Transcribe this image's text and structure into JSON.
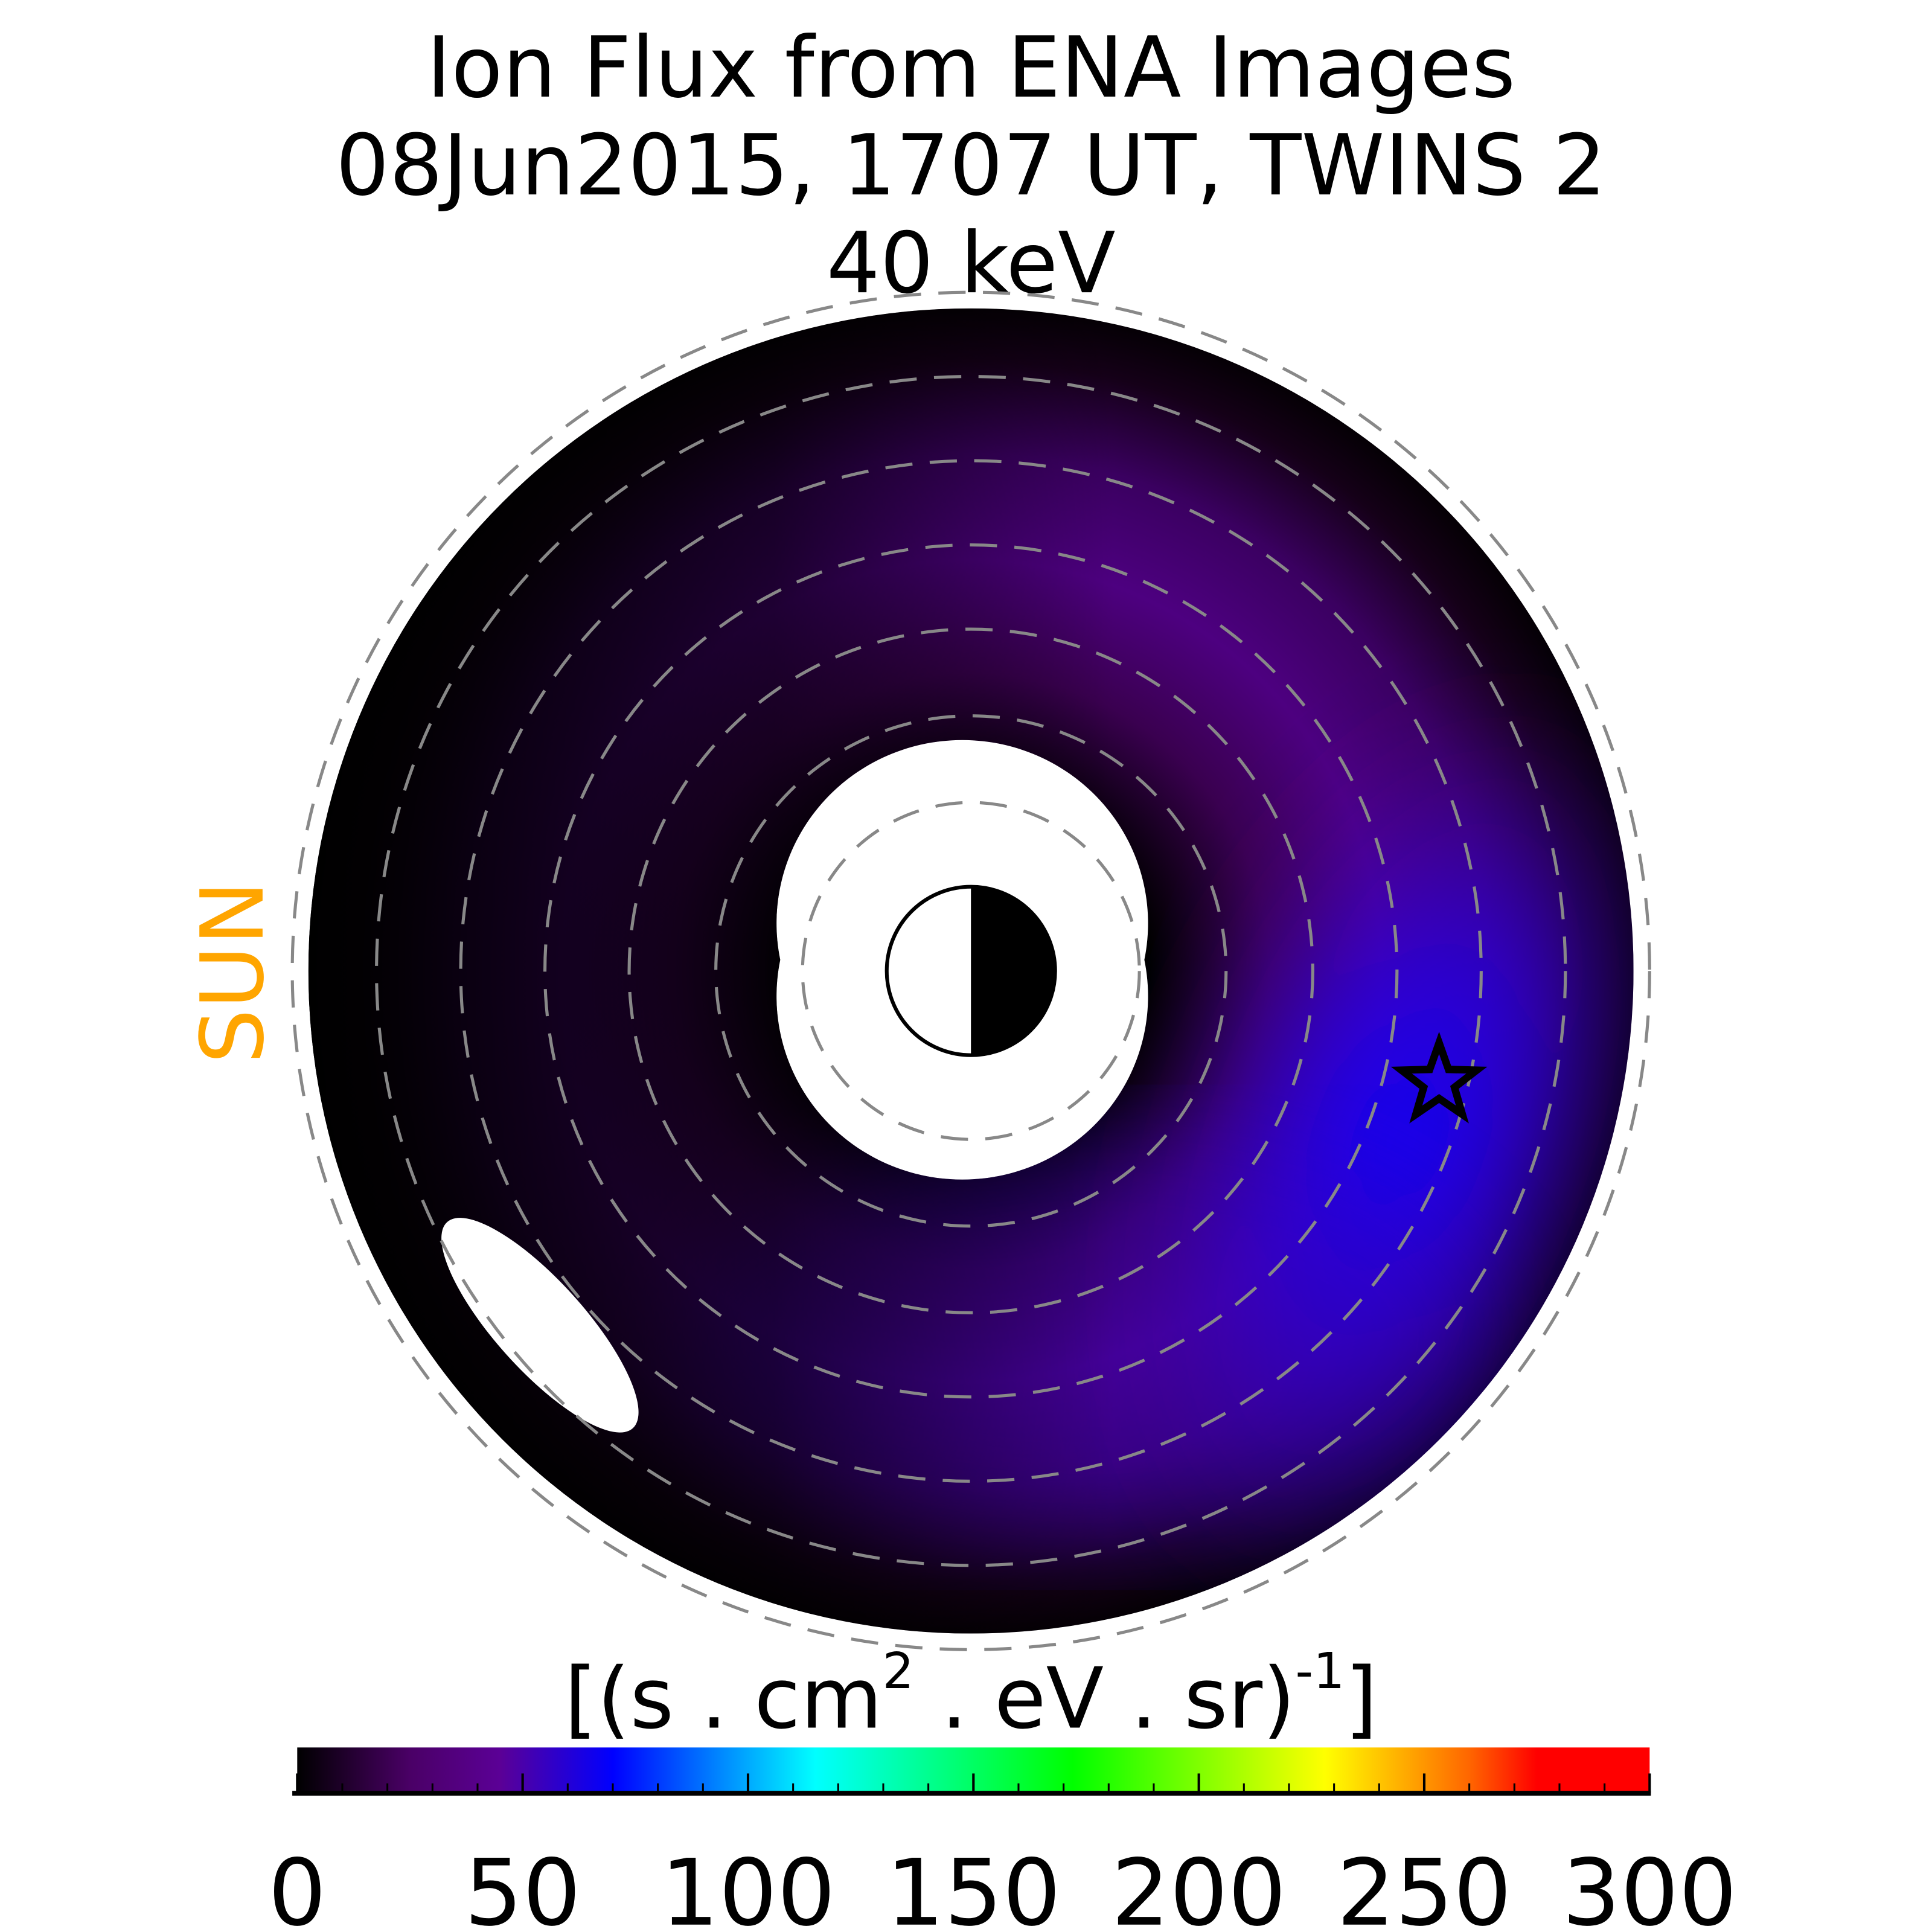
{
  "chart_data": {
    "type": "heatmap",
    "title_lines": [
      "Ion Flux from  ENA Images",
      "08Jun2015, 1707 UT,  TWINS 2",
      "40 keV"
    ],
    "sun_label": "SUN",
    "colorbar": {
      "label_main": "[(s . cm",
      "label_sup1": "2",
      "label_mid": " . eV . sr)",
      "label_sup2": "-1",
      "label_end": "]",
      "range": [
        0,
        300
      ],
      "tick_labels": [
        "0",
        "50",
        "100",
        "150",
        "200",
        "250",
        "300"
      ],
      "tick_values": [
        0,
        50,
        100,
        150,
        200,
        250,
        300
      ],
      "minor_tick_step": 10,
      "colormap": [
        {
          "value": 0,
          "color": "#000000"
        },
        {
          "value": 25,
          "color": "#4a0066"
        },
        {
          "value": 45,
          "color": "#5b0096"
        },
        {
          "value": 70,
          "color": "#0000ff"
        },
        {
          "value": 115,
          "color": "#00ffff"
        },
        {
          "value": 172,
          "color": "#00ff00"
        },
        {
          "value": 228,
          "color": "#ffff00"
        },
        {
          "value": 260,
          "color": "#ff6600"
        },
        {
          "value": 275,
          "color": "#ff0000"
        },
        {
          "value": 300,
          "color": "#ff0000"
        }
      ]
    },
    "flux_description": {
      "peak_value_approx": 70,
      "peak_region": "dusk side (right), slightly below center",
      "night_side_values_approx": 0
    },
    "markers": {
      "satellite": "star-icon",
      "earth": "earth-day-night-icon"
    },
    "grid": "dashed concentric circles",
    "grid_color": "#888888",
    "sun_color": "#FFA500"
  }
}
